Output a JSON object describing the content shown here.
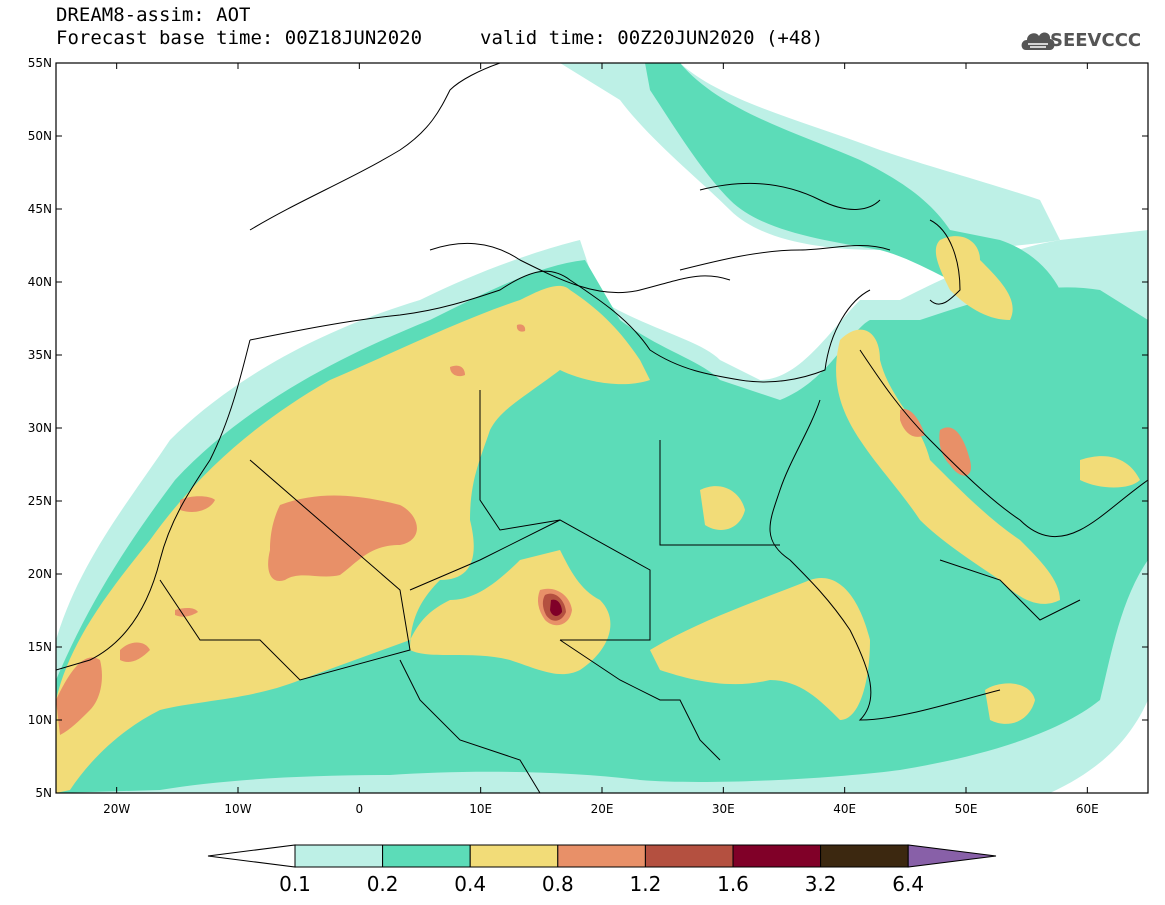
{
  "header": {
    "title_line1": "DREAM8-assim: AOT",
    "title_line2": "Forecast base time: 00Z18JUN2020",
    "valid_time": "valid time: 00Z20JUN2020 (+48)",
    "logo_text": "SEEVCCC"
  },
  "map": {
    "extent": {
      "lon_min": -25,
      "lon_max": 65,
      "lat_min": 5,
      "lat_max": 55
    },
    "lat_ticks": [
      "5N",
      "10N",
      "15N",
      "20N",
      "25N",
      "30N",
      "35N",
      "40N",
      "45N",
      "50N",
      "55N"
    ],
    "lon_ticks": [
      "20W",
      "10W",
      "0",
      "10E",
      "20E",
      "30E",
      "40E",
      "50E",
      "60E"
    ]
  },
  "colorbar": {
    "labels": [
      "0.1",
      "0.2",
      "0.4",
      "0.8",
      "1.2",
      "1.6",
      "3.2",
      "6.4"
    ],
    "colors": [
      "#ffffff",
      "#bdf0e6",
      "#5cdcb8",
      "#f2dc78",
      "#e89068",
      "#b45040",
      "#800028",
      "#3c2810",
      "#8860a8"
    ]
  },
  "field_colors": {
    "c1": "#bdf0e6",
    "c2": "#5cdcb8",
    "c3": "#f2dc78",
    "c4": "#e89068",
    "c5": "#b45040",
    "c6": "#800028"
  }
}
